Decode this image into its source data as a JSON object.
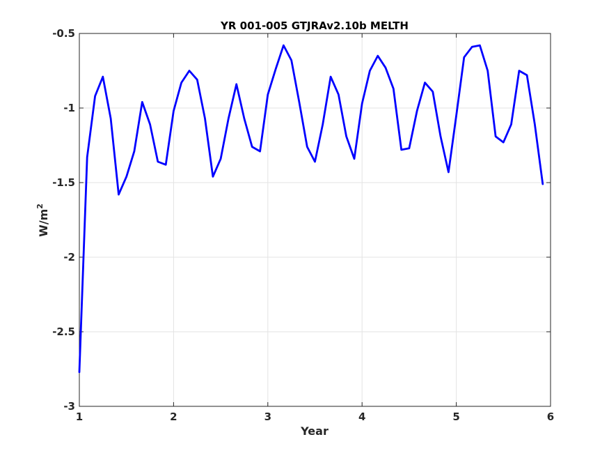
{
  "chart_data": {
    "type": "line",
    "title": "YR 001-005 GTJRAv2.10b MELTH",
    "xlabel": "Year",
    "ylabel": "W/m",
    "ylabel_superscript": "2",
    "xlim": [
      1,
      6
    ],
    "ylim": [
      -3,
      -0.5
    ],
    "xticks": [
      1,
      2,
      3,
      4,
      5,
      6
    ],
    "xtick_labels": [
      "1",
      "2",
      "3",
      "4",
      "5",
      "6"
    ],
    "yticks": [
      -3,
      -2.5,
      -2,
      -1.5,
      -1,
      -0.5
    ],
    "ytick_labels": [
      "-3",
      "-2.5",
      "-2",
      "-1.5",
      "-1",
      "-0.5"
    ],
    "grid": true,
    "series": [
      {
        "color": "#0000ff",
        "x": [
          1.0,
          1.083,
          1.167,
          1.25,
          1.333,
          1.417,
          1.5,
          1.583,
          1.667,
          1.75,
          1.833,
          1.917,
          2.0,
          2.083,
          2.167,
          2.25,
          2.333,
          2.417,
          2.5,
          2.583,
          2.667,
          2.75,
          2.833,
          2.917,
          3.0,
          3.083,
          3.167,
          3.25,
          3.333,
          3.417,
          3.5,
          3.583,
          3.667,
          3.75,
          3.833,
          3.917,
          4.0,
          4.083,
          4.167,
          4.25,
          4.333,
          4.417,
          4.5,
          4.583,
          4.667,
          4.75,
          4.833,
          4.917,
          5.0,
          5.083,
          5.167,
          5.25,
          5.333,
          5.417,
          5.5,
          5.583,
          5.667,
          5.75,
          5.833,
          5.917
        ],
        "y": [
          -2.77,
          -1.33,
          -0.92,
          -0.79,
          -1.07,
          -1.58,
          -1.46,
          -1.29,
          -0.96,
          -1.11,
          -1.36,
          -1.38,
          -1.02,
          -0.83,
          -0.75,
          -0.81,
          -1.07,
          -1.46,
          -1.34,
          -1.07,
          -0.84,
          -1.07,
          -1.26,
          -1.29,
          -0.91,
          -0.74,
          -0.58,
          -0.68,
          -0.96,
          -1.26,
          -1.36,
          -1.11,
          -0.79,
          -0.91,
          -1.19,
          -1.34,
          -0.97,
          -0.75,
          -0.65,
          -0.73,
          -0.87,
          -1.28,
          -1.27,
          -1.02,
          -0.83,
          -0.89,
          -1.19,
          -1.43,
          -1.05,
          -0.66,
          -0.59,
          -0.58,
          -0.75,
          -1.19,
          -1.23,
          -1.11,
          -0.75,
          -0.78,
          -1.11,
          -1.51
        ]
      }
    ]
  }
}
